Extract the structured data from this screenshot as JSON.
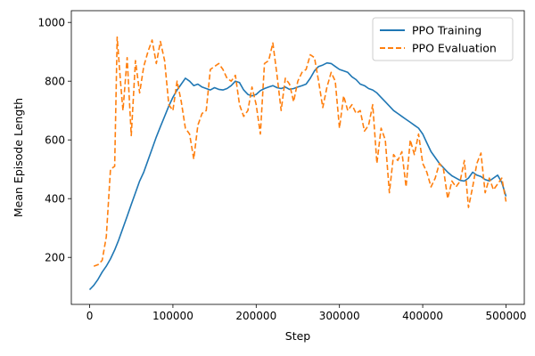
{
  "chart_data": {
    "type": "line",
    "xlabel": "Step",
    "ylabel": "Mean Episode Length",
    "xlim": [
      -22000,
      522000
    ],
    "ylim": [
      40,
      1040
    ],
    "xticks": [
      0,
      100000,
      200000,
      300000,
      400000,
      500000
    ],
    "xtick_labels": [
      "0",
      "100000",
      "200000",
      "300000",
      "400000",
      "500000"
    ],
    "yticks": [
      200,
      400,
      600,
      800,
      1000
    ],
    "ytick_labels": [
      "200",
      "400",
      "600",
      "800",
      "1000"
    ],
    "grid": false,
    "legend": {
      "placement": "top-right"
    },
    "series": [
      {
        "name": "PPO Training",
        "color": "#1f77b4",
        "dash": "solid",
        "x": [
          0,
          5000,
          10000,
          15000,
          20000,
          25000,
          30000,
          35000,
          40000,
          45000,
          50000,
          55000,
          60000,
          65000,
          70000,
          75000,
          80000,
          85000,
          90000,
          95000,
          100000,
          105000,
          110000,
          115000,
          120000,
          125000,
          130000,
          135000,
          140000,
          145000,
          150000,
          155000,
          160000,
          165000,
          170000,
          175000,
          180000,
          185000,
          190000,
          195000,
          200000,
          205000,
          210000,
          215000,
          220000,
          225000,
          230000,
          235000,
          240000,
          245000,
          250000,
          255000,
          260000,
          265000,
          270000,
          275000,
          280000,
          285000,
          290000,
          295000,
          300000,
          305000,
          310000,
          315000,
          320000,
          325000,
          330000,
          335000,
          340000,
          345000,
          350000,
          355000,
          360000,
          365000,
          370000,
          375000,
          380000,
          385000,
          390000,
          395000,
          400000,
          405000,
          410000,
          415000,
          420000,
          425000,
          430000,
          435000,
          440000,
          445000,
          450000,
          455000,
          460000,
          465000,
          470000,
          475000,
          480000,
          485000,
          490000,
          495000,
          500000
        ],
        "values": [
          90,
          105,
          125,
          150,
          170,
          195,
          225,
          260,
          300,
          340,
          380,
          420,
          460,
          490,
          530,
          570,
          610,
          645,
          680,
          715,
          745,
          770,
          790,
          810,
          800,
          785,
          790,
          780,
          775,
          770,
          778,
          772,
          770,
          775,
          785,
          800,
          795,
          770,
          755,
          750,
          755,
          768,
          775,
          780,
          785,
          778,
          775,
          780,
          772,
          775,
          780,
          785,
          790,
          810,
          835,
          850,
          855,
          862,
          860,
          850,
          840,
          835,
          830,
          815,
          805,
          790,
          785,
          775,
          770,
          760,
          745,
          730,
          715,
          700,
          690,
          680,
          670,
          660,
          650,
          640,
          620,
          590,
          560,
          540,
          520,
          505,
          490,
          478,
          470,
          462,
          460,
          470,
          490,
          480,
          475,
          465,
          460,
          470,
          480,
          455,
          408
        ]
      },
      {
        "name": "PPO Evaluation",
        "color": "#ff7f0e",
        "dash": "dashed",
        "x": [
          5000,
          10000,
          15000,
          20000,
          25000,
          30000,
          33000,
          37000,
          40000,
          45000,
          50000,
          55000,
          60000,
          65000,
          70000,
          75000,
          80000,
          85000,
          90000,
          95000,
          100000,
          105000,
          110000,
          115000,
          120000,
          125000,
          130000,
          135000,
          140000,
          145000,
          150000,
          155000,
          160000,
          165000,
          170000,
          175000,
          180000,
          185000,
          190000,
          195000,
          200000,
          205000,
          210000,
          215000,
          220000,
          225000,
          230000,
          235000,
          240000,
          245000,
          250000,
          255000,
          260000,
          265000,
          270000,
          275000,
          280000,
          285000,
          290000,
          295000,
          300000,
          305000,
          310000,
          315000,
          320000,
          325000,
          330000,
          335000,
          340000,
          345000,
          350000,
          355000,
          360000,
          365000,
          370000,
          375000,
          380000,
          385000,
          390000,
          395000,
          400000,
          405000,
          410000,
          415000,
          420000,
          425000,
          430000,
          435000,
          440000,
          445000,
          450000,
          455000,
          460000,
          465000,
          470000,
          475000,
          480000,
          485000,
          490000,
          495000,
          500000
        ],
        "values": [
          170,
          175,
          190,
          270,
          500,
          510,
          950,
          800,
          700,
          880,
          615,
          870,
          760,
          850,
          900,
          940,
          860,
          935,
          870,
          720,
          700,
          800,
          730,
          640,
          620,
          535,
          650,
          690,
          700,
          840,
          850,
          860,
          840,
          810,
          800,
          820,
          720,
          680,
          700,
          780,
          720,
          620,
          860,
          870,
          930,
          820,
          700,
          810,
          790,
          730,
          800,
          830,
          840,
          890,
          880,
          800,
          710,
          780,
          830,
          800,
          640,
          750,
          700,
          720,
          690,
          700,
          630,
          650,
          720,
          520,
          640,
          600,
          420,
          550,
          530,
          560,
          440,
          600,
          550,
          620,
          520,
          490,
          440,
          470,
          520,
          500,
          400,
          460,
          440,
          460,
          530,
          370,
          440,
          520,
          555,
          420,
          470,
          430,
          450,
          470,
          390
        ]
      }
    ]
  }
}
